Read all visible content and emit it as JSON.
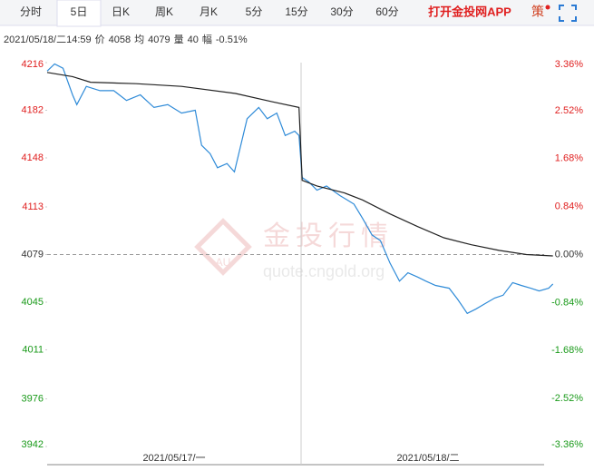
{
  "toolbar": {
    "tabs": [
      "分时",
      "5日",
      "日K",
      "周K",
      "月K",
      "5分",
      "15分",
      "30分",
      "60分"
    ],
    "selected": 1,
    "app_link": "打开金投网APP",
    "strategy": "策"
  },
  "info": [
    "2021/05/18/二14:59",
    "价",
    "4058",
    "均",
    "4079",
    "量",
    "40",
    "幅",
    "-0.51%"
  ],
  "watermark": {
    "logo": "AU",
    "title": "金投行情",
    "url": "quote.cngold.org"
  },
  "chart_data": {
    "type": "line",
    "xlim": [
      0,
      480
    ],
    "xticks": [
      {
        "value": 120,
        "label": "2021/05/17/一"
      },
      {
        "value": 360,
        "label": "2021/05/18/二"
      }
    ],
    "ylim": [
      3942,
      4216
    ],
    "yticks": [
      4216,
      4182,
      4148,
      4113,
      4079,
      4045,
      4011,
      3976,
      3942
    ],
    "y2lim": [
      -3.36,
      3.36
    ],
    "y2ticks": [
      {
        "value": 3.36,
        "label": "3.36%"
      },
      {
        "value": 2.52,
        "label": "2.52%"
      },
      {
        "value": 1.68,
        "label": "1.68%"
      },
      {
        "value": 0.84,
        "label": "0.84%"
      },
      {
        "value": 0,
        "label": "0.00%"
      },
      {
        "value": -0.84,
        "label": "-0.84%"
      },
      {
        "value": -1.68,
        "label": "-1.68%"
      },
      {
        "value": -2.52,
        "label": "-2.52%"
      },
      {
        "value": -3.36,
        "label": "-3.36%"
      }
    ],
    "up_color": "#e02020",
    "down_color": "#1a9a1a",
    "flat_color": "#333333",
    "series": [
      {
        "color": "#2f8bd8",
        "x": [
          0,
          7,
          15,
          24,
          28,
          37,
          50,
          63,
          75,
          88,
          101,
          114,
          127,
          140,
          146,
          154,
          161,
          170,
          177,
          183,
          189,
          200,
          208,
          217,
          225,
          234,
          238,
          241,
          247,
          255,
          264,
          277,
          290,
          298,
          307,
          315,
          324,
          333,
          341,
          350,
          358,
          367,
          380,
          388,
          397,
          405,
          414,
          423,
          431,
          440,
          448,
          457,
          465,
          474,
          478
        ],
        "values": [
          4210,
          4215,
          4212,
          4193,
          4186,
          4199,
          4196,
          4196,
          4189,
          4193,
          4184,
          4186,
          4180,
          4182,
          4157,
          4151,
          4141,
          4144,
          4138,
          4157,
          4176,
          4184,
          4176,
          4180,
          4164,
          4167,
          4164,
          4134,
          4131,
          4125,
          4128,
          4121,
          4115,
          4105,
          4093,
          4089,
          4073,
          4060,
          4066,
          4063,
          4060,
          4057,
          4055,
          4047,
          4037,
          4040,
          4044,
          4048,
          4050,
          4059,
          4057,
          4055,
          4053,
          4055,
          4058
        ]
      },
      {
        "color": "#222222",
        "x": [
          0,
          24,
          41,
          84,
          127,
          178,
          213,
          238,
          241,
          255,
          281,
          298,
          324,
          350,
          375,
          401,
          427,
          453,
          478
        ],
        "values": [
          4209,
          4206,
          4202,
          4201,
          4199,
          4194,
          4188,
          4184,
          4132,
          4128,
          4123,
          4118,
          4108,
          4099,
          4091,
          4086,
          4082,
          4079,
          4078
        ]
      }
    ]
  }
}
